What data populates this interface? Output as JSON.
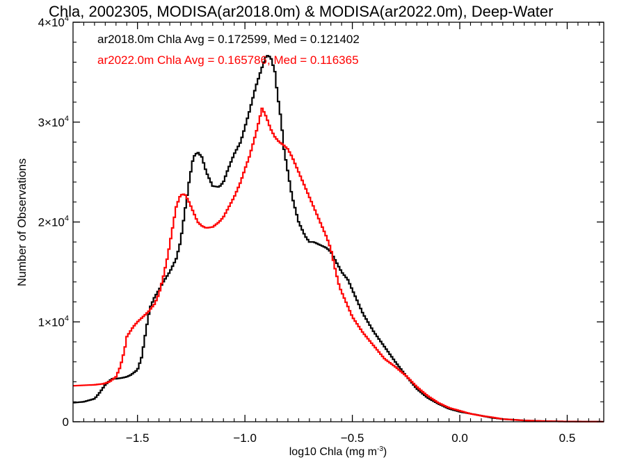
{
  "chart_data": {
    "type": "line",
    "title": "Chla, 2002305, MODISA(ar2018.0m) & MODISA(ar2022.0m), Deep-Water",
    "xlabel": "log10 Chla (mg m",
    "xlabel_sup": "-3",
    "xlabel_close": ")",
    "ylabel": "Number of Observations",
    "xlim": [
      -1.8,
      0.67
    ],
    "ylim": [
      0,
      40000
    ],
    "x_ticks": [
      -1.5,
      -1.0,
      -0.5,
      0.0,
      0.5
    ],
    "x_tick_labels": [
      "−1.5",
      "−1.0",
      "−0.5",
      "0.0",
      "0.5"
    ],
    "y_ticks": [
      0,
      10000,
      20000,
      30000,
      40000
    ],
    "y_tick_labels": [
      {
        "base": "0",
        "exp": ""
      },
      {
        "base": "1×10",
        "exp": "4"
      },
      {
        "base": "2×10",
        "exp": "4"
      },
      {
        "base": "3×10",
        "exp": "4"
      },
      {
        "base": "4×10",
        "exp": "4"
      }
    ],
    "grid": false,
    "annotations": [
      {
        "text": "ar2018.0m Chla Avg = 0.172599, Med = 0.121402",
        "color": "#000000"
      },
      {
        "text": "ar2022.0m Chla Avg = 0.165786, Med = 0.116365",
        "color": "#ff0000"
      }
    ],
    "series": [
      {
        "color": "#000000",
        "x": [
          -1.8,
          -1.75,
          -1.7,
          -1.68,
          -1.65,
          -1.62,
          -1.6,
          -1.57,
          -1.55,
          -1.53,
          -1.5,
          -1.48,
          -1.46,
          -1.45,
          -1.44,
          -1.42,
          -1.4,
          -1.38,
          -1.35,
          -1.32,
          -1.3,
          -1.28,
          -1.26,
          -1.24,
          -1.22,
          -1.2,
          -1.18,
          -1.15,
          -1.12,
          -1.1,
          -1.08,
          -1.05,
          -1.02,
          -1.0,
          -0.98,
          -0.95,
          -0.92,
          -0.9,
          -0.88,
          -0.86,
          -0.85,
          -0.83,
          -0.82,
          -0.8,
          -0.78,
          -0.75,
          -0.72,
          -0.7,
          -0.68,
          -0.65,
          -0.62,
          -0.6,
          -0.58,
          -0.55,
          -0.52,
          -0.5,
          -0.45,
          -0.4,
          -0.35,
          -0.3,
          -0.25,
          -0.2,
          -0.15,
          -0.1,
          -0.05,
          0.0,
          0.05,
          0.1,
          0.15,
          0.2,
          0.3,
          0.4,
          0.5,
          0.6,
          0.67
        ],
        "values": [
          1900,
          2000,
          2300,
          2800,
          3700,
          4300,
          4300,
          4400,
          4500,
          4700,
          5200,
          6500,
          9200,
          10500,
          11500,
          12500,
          13200,
          14000,
          15000,
          16300,
          18000,
          21000,
          24000,
          26500,
          27000,
          26500,
          25000,
          23600,
          23500,
          24000,
          25200,
          26800,
          28000,
          29500,
          31000,
          33500,
          35500,
          36700,
          36500,
          35000,
          33000,
          30000,
          27500,
          25000,
          22500,
          20000,
          18600,
          18000,
          18000,
          17700,
          17400,
          17000,
          16200,
          15000,
          14200,
          13200,
          10800,
          9000,
          7500,
          6000,
          4600,
          3300,
          2400,
          1800,
          1300,
          1000,
          800,
          600,
          400,
          270,
          130,
          60,
          25,
          10,
          5
        ]
      },
      {
        "color": "#ff0000",
        "x": [
          -1.8,
          -1.75,
          -1.7,
          -1.66,
          -1.63,
          -1.6,
          -1.58,
          -1.56,
          -1.55,
          -1.52,
          -1.5,
          -1.48,
          -1.45,
          -1.42,
          -1.4,
          -1.38,
          -1.36,
          -1.34,
          -1.32,
          -1.3,
          -1.28,
          -1.26,
          -1.24,
          -1.22,
          -1.2,
          -1.18,
          -1.15,
          -1.12,
          -1.1,
          -1.08,
          -1.05,
          -1.02,
          -1.0,
          -0.98,
          -0.96,
          -0.94,
          -0.92,
          -0.9,
          -0.88,
          -0.86,
          -0.84,
          -0.82,
          -0.8,
          -0.78,
          -0.76,
          -0.74,
          -0.72,
          -0.7,
          -0.68,
          -0.65,
          -0.62,
          -0.6,
          -0.58,
          -0.56,
          -0.55,
          -0.52,
          -0.5,
          -0.45,
          -0.4,
          -0.35,
          -0.3,
          -0.25,
          -0.2,
          -0.15,
          -0.1,
          -0.05,
          0.0,
          0.05,
          0.1,
          0.15,
          0.2,
          0.3,
          0.4,
          0.5,
          0.6,
          0.67
        ],
        "values": [
          3600,
          3650,
          3700,
          3800,
          4000,
          4500,
          5500,
          7200,
          8500,
          9500,
          10000,
          10400,
          11000,
          11800,
          12800,
          14500,
          16500,
          19000,
          21500,
          22700,
          22800,
          22000,
          21000,
          20000,
          19600,
          19400,
          19500,
          20000,
          20500,
          21300,
          22500,
          24000,
          25300,
          26500,
          28000,
          29600,
          31400,
          30500,
          29300,
          28500,
          28000,
          27700,
          27300,
          26500,
          25500,
          24500,
          23500,
          22500,
          21500,
          20000,
          18500,
          17300,
          15300,
          13500,
          13000,
          11500,
          10500,
          8900,
          7600,
          6300,
          5500,
          4600,
          3500,
          2600,
          1900,
          1400,
          1100,
          800,
          600,
          450,
          270,
          130,
          60,
          25,
          10,
          5
        ]
      }
    ]
  }
}
